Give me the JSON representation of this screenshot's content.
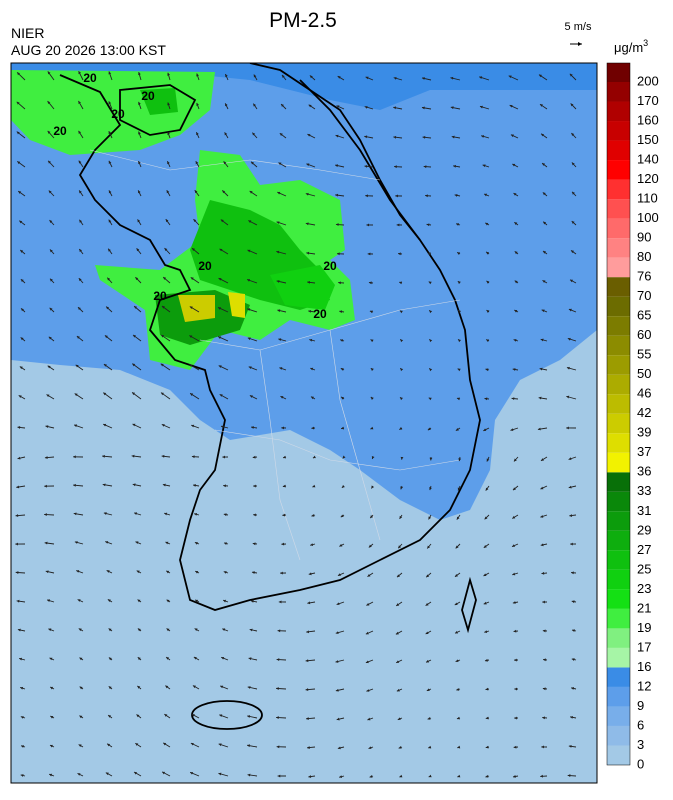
{
  "header": {
    "title": "PM-2.5",
    "source": "NIER",
    "timestamp": "AUG 20 2026 13:00 KST",
    "wind_reference": "5 m/s",
    "unit": {
      "text": "μg/m",
      "sup": "3"
    }
  },
  "map": {
    "contour_labels": [
      "20",
      "20",
      "20",
      "20",
      "20",
      "20",
      "20",
      "20"
    ]
  },
  "colorbar": {
    "levels": [
      0,
      3,
      6,
      9,
      12,
      16,
      17,
      19,
      21,
      23,
      25,
      27,
      29,
      31,
      33,
      36,
      37,
      39,
      42,
      46,
      50,
      55,
      60,
      65,
      70,
      76,
      80,
      90,
      100,
      110,
      120,
      140,
      150,
      160,
      170,
      200
    ],
    "colors": [
      "#a3c9e6",
      "#8fbbe8",
      "#78aeea",
      "#5d9eea",
      "#3a8ce6",
      "#a6f5a6",
      "#80f080",
      "#40ee40",
      "#14e014",
      "#10d010",
      "#0fc00f",
      "#0eae0e",
      "#0c9c0c",
      "#0a880a",
      "#087008",
      "#f2f200",
      "#dede00",
      "#cccc00",
      "#bcbc00",
      "#acac00",
      "#9c9c00",
      "#8c8c00",
      "#7c7c00",
      "#6c6c00",
      "#6a5e00",
      "#ff9c9c",
      "#ff8282",
      "#ff6a6a",
      "#ff5050",
      "#ff3030",
      "#ff0000",
      "#e00000",
      "#c80000",
      "#b00000",
      "#940000",
      "#700000"
    ]
  }
}
